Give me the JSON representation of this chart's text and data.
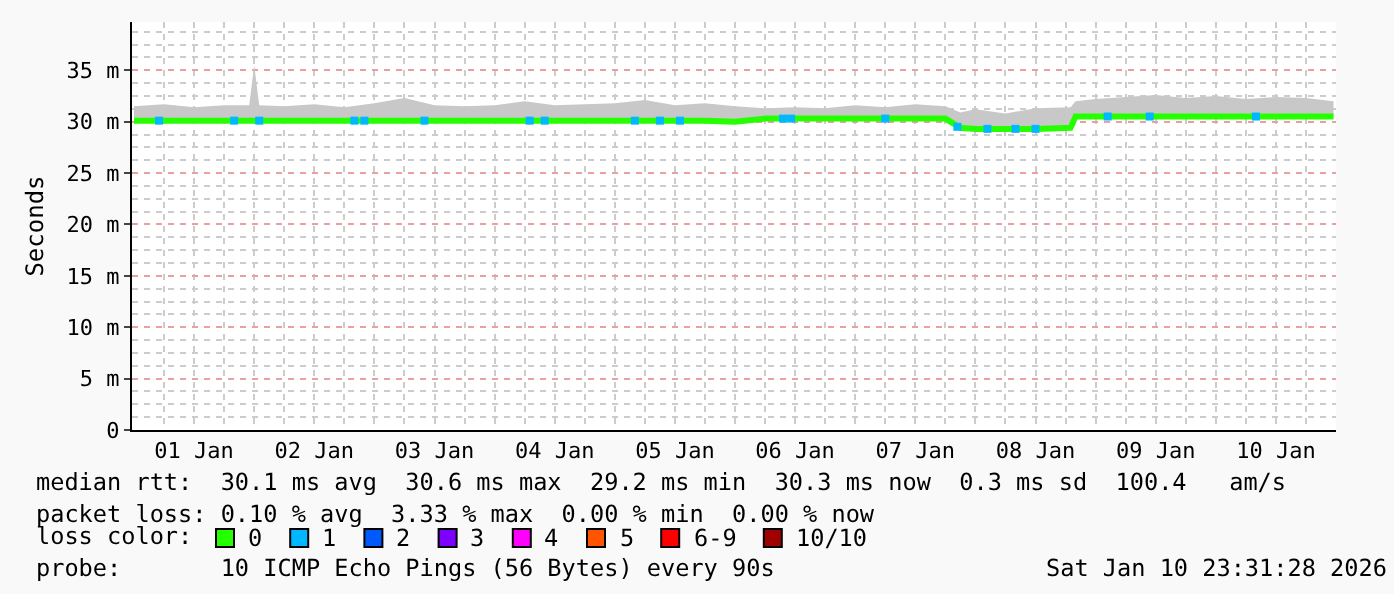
{
  "chart_data": {
    "type": "line",
    "ylabel": "Seconds",
    "x": [
      "2026-01-01T00:00",
      "2026-01-01T06:00",
      "2026-01-01T12:00",
      "2026-01-01T18:00",
      "2026-01-01T23:00",
      "2026-01-02T00:00",
      "2026-01-02T01:00",
      "2026-01-02T06:00",
      "2026-01-02T12:00",
      "2026-01-02T18:00",
      "2026-01-03T00:00",
      "2026-01-03T06:00",
      "2026-01-03T12:00",
      "2026-01-03T18:00",
      "2026-01-04T00:00",
      "2026-01-04T06:00",
      "2026-01-04T12:00",
      "2026-01-04T18:00",
      "2026-01-05T00:00",
      "2026-01-05T06:00",
      "2026-01-05T12:00",
      "2026-01-05T18:00",
      "2026-01-06T00:00",
      "2026-01-06T06:00",
      "2026-01-06T12:00",
      "2026-01-06T18:00",
      "2026-01-07T00:00",
      "2026-01-07T06:00",
      "2026-01-07T12:00",
      "2026-01-07T18:00",
      "2026-01-07T21:00",
      "2026-01-08T00:00",
      "2026-01-08T06:00",
      "2026-01-08T12:00",
      "2026-01-08T19:00",
      "2026-01-08T20:00",
      "2026-01-09T00:00",
      "2026-01-09T06:00",
      "2026-01-09T12:00",
      "2026-01-09T18:00",
      "2026-01-10T00:00",
      "2026-01-10T06:00",
      "2026-01-10T12:00",
      "2026-01-10T18:00",
      "2026-01-10T23:30"
    ],
    "series": [
      {
        "name": "0",
        "color": "#26ff00",
        "values": [
          30.1,
          30.1,
          30.1,
          30.1,
          30.1,
          30.1,
          30.1,
          30.1,
          30.1,
          30.1,
          30.1,
          30.1,
          30.1,
          30.1,
          30.1,
          30.1,
          30.1,
          30.1,
          30.1,
          30.1,
          30.1,
          30.1,
          30.0,
          30.3,
          30.3,
          30.3,
          30.3,
          30.3,
          30.3,
          30.3,
          29.4,
          29.3,
          29.3,
          29.3,
          29.4,
          30.5,
          30.5,
          30.5,
          30.5,
          30.5,
          30.5,
          30.5,
          30.5,
          30.5,
          30.5
        ],
        "lower": [
          30.0,
          30.0,
          30.0,
          30.0,
          30.0,
          30.0,
          30.0,
          30.0,
          30.0,
          30.0,
          30.0,
          30.0,
          30.0,
          30.0,
          30.0,
          30.0,
          30.0,
          30.0,
          30.0,
          30.0,
          30.0,
          30.0,
          30.0,
          30.2,
          30.2,
          30.2,
          30.2,
          30.2,
          30.2,
          30.2,
          29.2,
          29.2,
          29.2,
          29.2,
          29.3,
          30.4,
          30.4,
          30.4,
          30.4,
          30.4,
          30.4,
          30.4,
          30.4,
          30.4,
          30.4
        ],
        "upper": [
          31.5,
          31.7,
          31.4,
          31.6,
          31.6,
          35.5,
          31.6,
          31.5,
          31.7,
          31.4,
          31.8,
          32.3,
          31.6,
          31.5,
          31.6,
          32.0,
          31.6,
          31.7,
          31.8,
          32.1,
          31.6,
          31.8,
          31.5,
          31.3,
          31.4,
          31.3,
          31.6,
          31.4,
          31.7,
          31.5,
          30.9,
          31.2,
          30.8,
          31.3,
          31.4,
          32.0,
          32.2,
          32.4,
          32.6,
          32.3,
          32.5,
          32.2,
          32.4,
          32.3,
          32.0
        ]
      },
      {
        "name": "1",
        "color": "#00b8ff",
        "type": "scatter",
        "marker": "square",
        "x": [
          "2026-01-01T05:00",
          "2026-01-01T20:00",
          "2026-01-02T01:00",
          "2026-01-02T20:00",
          "2026-01-02T22:00",
          "2026-01-03T10:00",
          "2026-01-04T07:00",
          "2026-01-04T10:00",
          "2026-01-05T04:00",
          "2026-01-05T09:00",
          "2026-01-05T13:00",
          "2026-01-06T09:36",
          "2026-01-06T11:12",
          "2026-01-07T06:00",
          "2026-01-07T20:24",
          "2026-01-08T02:24",
          "2026-01-08T08:00",
          "2026-01-08T12:00",
          "2026-01-09T02:24",
          "2026-01-09T10:48",
          "2026-01-10T08:00"
        ],
        "values": [
          30.1,
          30.1,
          30.1,
          30.1,
          30.1,
          30.1,
          30.1,
          30.1,
          30.1,
          30.1,
          30.1,
          30.3,
          30.3,
          30.3,
          29.5,
          29.3,
          29.3,
          29.3,
          30.5,
          30.5,
          30.5
        ]
      },
      {
        "name": "2",
        "color": "#0059ff",
        "type": "scatter",
        "marker": "square",
        "values": [
          null,
          null,
          null,
          null,
          null,
          null,
          null,
          null,
          null,
          null,
          null,
          null,
          null,
          null,
          null,
          null,
          null,
          null,
          null,
          null,
          null,
          null,
          null,
          null,
          null,
          null,
          null,
          null,
          null,
          null,
          null,
          null,
          null,
          null,
          null,
          null,
          null,
          null,
          null,
          null,
          null,
          null,
          null,
          null,
          null
        ]
      },
      {
        "name": "3",
        "color": "#7e00ff",
        "type": "scatter",
        "marker": "square",
        "values": [
          null,
          null,
          null,
          null,
          null,
          null,
          null,
          null,
          null,
          null,
          null,
          null,
          null,
          null,
          null,
          null,
          null,
          null,
          null,
          null,
          null,
          null,
          null,
          null,
          null,
          null,
          null,
          null,
          null,
          null,
          null,
          null,
          null,
          null,
          null,
          null,
          null,
          null,
          null,
          null,
          null,
          null,
          null,
          null,
          null
        ]
      },
      {
        "name": "4",
        "color": "#ff00ff",
        "type": "scatter",
        "marker": "square",
        "values": [
          null,
          null,
          null,
          null,
          null,
          null,
          null,
          null,
          null,
          null,
          null,
          null,
          null,
          null,
          null,
          null,
          null,
          null,
          null,
          null,
          null,
          null,
          null,
          null,
          null,
          null,
          null,
          null,
          null,
          null,
          null,
          null,
          null,
          null,
          null,
          null,
          null,
          null,
          null,
          null,
          null,
          null,
          null,
          null,
          null
        ]
      },
      {
        "name": "5",
        "color": "#ff5500",
        "type": "scatter",
        "marker": "square",
        "values": [
          null,
          null,
          null,
          null,
          null,
          null,
          null,
          null,
          null,
          null,
          null,
          null,
          null,
          null,
          null,
          null,
          null,
          null,
          null,
          null,
          null,
          null,
          null,
          null,
          null,
          null,
          null,
          null,
          null,
          null,
          null,
          null,
          null,
          null,
          null,
          null,
          null,
          null,
          null,
          null,
          null,
          null,
          null,
          null,
          null
        ]
      },
      {
        "name": "6-9",
        "color": "#ff0000",
        "type": "scatter",
        "marker": "square",
        "values": [
          null,
          null,
          null,
          null,
          null,
          null,
          null,
          null,
          null,
          null,
          null,
          null,
          null,
          null,
          null,
          null,
          null,
          null,
          null,
          null,
          null,
          null,
          null,
          null,
          null,
          null,
          null,
          null,
          null,
          null,
          null,
          null,
          null,
          null,
          null,
          null,
          null,
          null,
          null,
          null,
          null,
          null,
          null,
          null,
          null
        ]
      },
      {
        "name": "10/10",
        "color": "#a10000",
        "type": "scatter",
        "marker": "square",
        "values": [
          null,
          null,
          null,
          null,
          null,
          null,
          null,
          null,
          null,
          null,
          null,
          null,
          null,
          null,
          null,
          null,
          null,
          null,
          null,
          null,
          null,
          null,
          null,
          null,
          null,
          null,
          null,
          null,
          null,
          null,
          null,
          null,
          null,
          null,
          null,
          null,
          null,
          null,
          null,
          null,
          null,
          null,
          null,
          null,
          null
        ]
      }
    ],
    "xlim": [
      "2025-12-31T23:36",
      "2026-01-11T00:00"
    ],
    "xticks": [
      {
        "value": "2026-01-01T12:00",
        "label": "01 Jan"
      },
      {
        "value": "2026-01-02T12:00",
        "label": "02 Jan"
      },
      {
        "value": "2026-01-03T12:00",
        "label": "03 Jan"
      },
      {
        "value": "2026-01-04T12:00",
        "label": "04 Jan"
      },
      {
        "value": "2026-01-05T12:00",
        "label": "05 Jan"
      },
      {
        "value": "2026-01-06T12:00",
        "label": "06 Jan"
      },
      {
        "value": "2026-01-07T12:00",
        "label": "07 Jan"
      },
      {
        "value": "2026-01-08T12:00",
        "label": "08 Jan"
      },
      {
        "value": "2026-01-09T12:00",
        "label": "09 Jan"
      },
      {
        "value": "2026-01-10T12:00",
        "label": "10 Jan"
      }
    ],
    "ylim": [
      0,
      39.7
    ],
    "yticks": [
      0,
      {
        "value": 5,
        "label": "5 m"
      },
      {
        "value": 10,
        "label": "10 m"
      },
      {
        "value": 15,
        "label": "15 m"
      },
      {
        "value": 20,
        "label": "20 m"
      },
      {
        "value": 25,
        "label": "25 m"
      },
      {
        "value": 30,
        "label": "30 m"
      },
      {
        "value": 35,
        "label": "35 m"
      }
    ],
    "grid": true,
    "legend": "bottom",
    "annotations": [
      "median rtt:  30.1 ms avg  30.6 ms max  29.2 ms min  30.3 ms now  0.3 ms sd  100.4   am/s",
      "packet loss: 0.10 % avg  3.33 % max  0.00 % min  0.00 % now",
      "loss color:",
      "probe:       10 ICMP Echo Pings (56 Bytes) every 90s",
      "Sat Jan 10 23:31:28 2026"
    ]
  }
}
